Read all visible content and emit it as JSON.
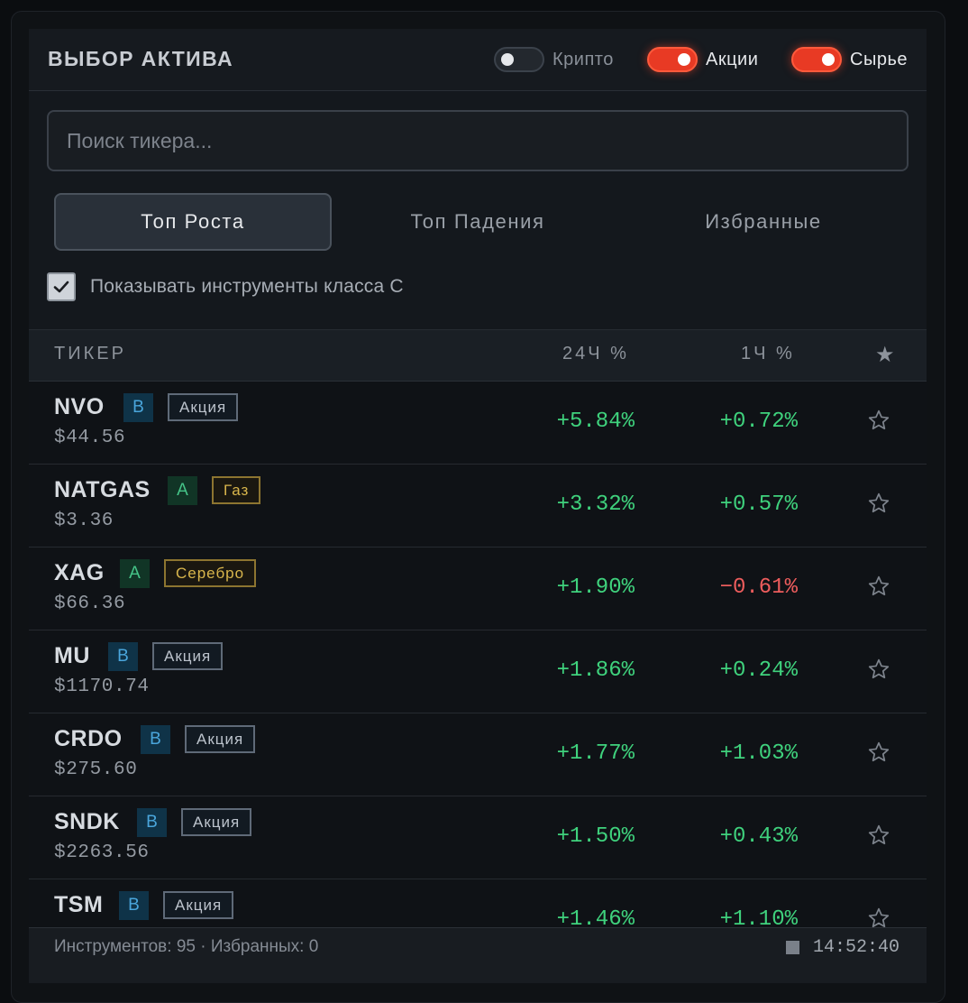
{
  "header": {
    "title": "ВЫБОР АКТИВА",
    "toggles": [
      {
        "label": "Крипто",
        "on": false
      },
      {
        "label": "Акции",
        "on": true
      },
      {
        "label": "Сырье",
        "on": true
      }
    ]
  },
  "search": {
    "placeholder": "Поиск тикера...",
    "value": ""
  },
  "tabs": [
    {
      "label": "Топ Роста",
      "active": true
    },
    {
      "label": "Топ Падения",
      "active": false
    },
    {
      "label": "Избранные",
      "active": false
    }
  ],
  "class_c_filter": {
    "label": "Показывать инструменты класса C",
    "checked": true
  },
  "table": {
    "columns": {
      "ticker": "ТИКЕР",
      "change_24h": "24Ч %",
      "change_1h": "1Ч %"
    },
    "rows": [
      {
        "symbol": "NVO",
        "grade": "B",
        "tag": "Акция",
        "tag_style": "stock",
        "price": "$44.56",
        "change_24h": "+5.84%",
        "change_1h": "+0.72%"
      },
      {
        "symbol": "NATGAS",
        "grade": "A",
        "tag": "Газ",
        "tag_style": "commodity",
        "price": "$3.36",
        "change_24h": "+3.32%",
        "change_1h": "+0.57%"
      },
      {
        "symbol": "XAG",
        "grade": "A",
        "tag": "Серебро",
        "tag_style": "commodity",
        "price": "$66.36",
        "change_24h": "+1.90%",
        "change_1h": "−0.61%"
      },
      {
        "symbol": "MU",
        "grade": "B",
        "tag": "Акция",
        "tag_style": "stock",
        "price": "$1170.74",
        "change_24h": "+1.86%",
        "change_1h": "+0.24%"
      },
      {
        "symbol": "CRDO",
        "grade": "B",
        "tag": "Акция",
        "tag_style": "stock",
        "price": "$275.60",
        "change_24h": "+1.77%",
        "change_1h": "+1.03%"
      },
      {
        "symbol": "SNDK",
        "grade": "B",
        "tag": "Акция",
        "tag_style": "stock",
        "price": "$2263.56",
        "change_24h": "+1.50%",
        "change_1h": "+0.43%"
      },
      {
        "symbol": "TSM",
        "grade": "B",
        "tag": "Акция",
        "tag_style": "stock",
        "price": "",
        "change_24h": "+1.46%",
        "change_1h": "+1.10%"
      }
    ]
  },
  "footer": {
    "summary": "Инструментов: 95 · Избранных: 0",
    "time": "14:52:40"
  },
  "icons": {
    "header_star": "star-filled-icon",
    "row_star": "star-outline-icon",
    "check": "checkmark-icon"
  },
  "colors": {
    "accent_on": "#e83a24",
    "positive": "#3fd27d",
    "negative": "#ee5d5d",
    "grade_a": "#45c488",
    "grade_b": "#4aa6dc",
    "commodity_tag": "#d9b64c"
  }
}
